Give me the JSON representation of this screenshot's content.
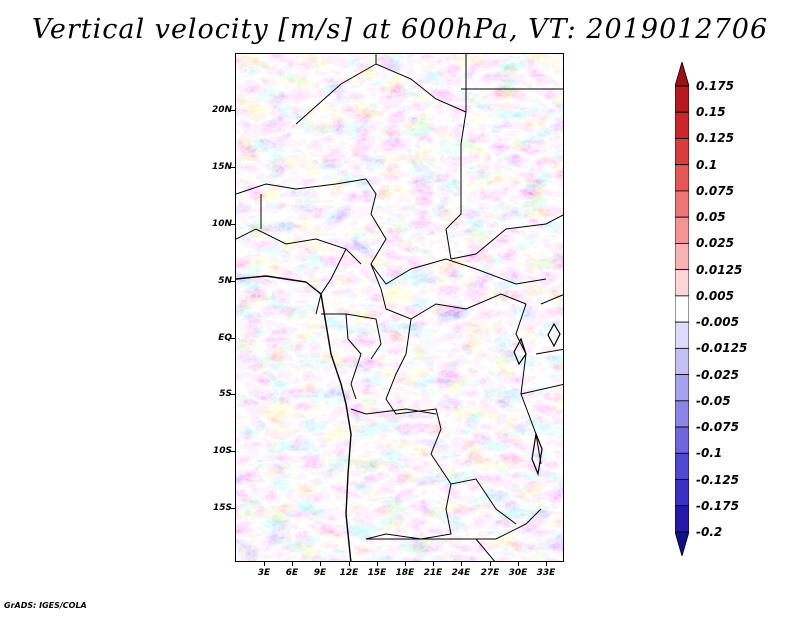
{
  "title": "Vertical velocity [m/s] at 600hPa, VT: 2019012706",
  "credit": "GrADS: IGES/COLA",
  "map": {
    "variable": "Vertical velocity",
    "units": "m/s",
    "level": "600hPa",
    "valid_time": "2019012706",
    "lat_labels": [
      "20N",
      "15N",
      "10N",
      "5N",
      "EQ",
      "5S",
      "10S",
      "15S"
    ],
    "lon_labels": [
      "3E",
      "6E",
      "9E",
      "12E",
      "15E",
      "18E",
      "21E",
      "24E",
      "27E",
      "30E",
      "33E"
    ],
    "positive_color": "#d7303a",
    "negative_color": "#4646d2"
  },
  "colorbar": {
    "labels": [
      "0.175",
      "0.15",
      "0.125",
      "0.1",
      "0.075",
      "0.05",
      "0.025",
      "0.0125",
      "0.005",
      "-0.005",
      "-0.0125",
      "-0.025",
      "-0.05",
      "-0.075",
      "-0.1",
      "-0.125",
      "-0.175",
      "-0.2"
    ],
    "colors": [
      "#a00f14",
      "#b41a1e",
      "#c8282a",
      "#d93c3c",
      "#e55858",
      "#ee7676",
      "#f59494",
      "#f8b4b4",
      "#fcd6d6",
      "#ffffff",
      "#dedcfa",
      "#c4c0f4",
      "#a8a2ee",
      "#8c84e6",
      "#6e66dc",
      "#5048d0",
      "#3a30c2",
      "#241aa6",
      "#10108a"
    ]
  }
}
